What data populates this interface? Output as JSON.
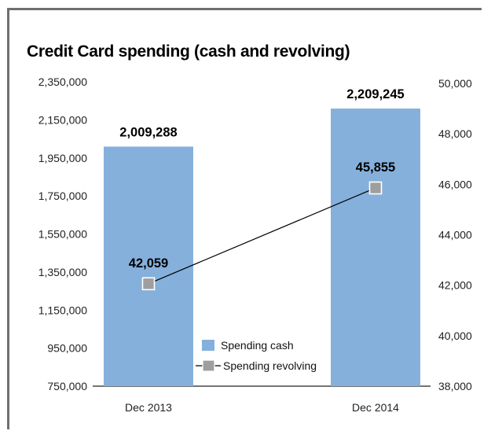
{
  "chart_data": {
    "type": "bar",
    "title": "Credit Card spending (cash and revolving)",
    "categories": [
      "Dec 2013",
      "Dec 2014"
    ],
    "series": [
      {
        "name": "Spending cash",
        "type": "bar",
        "axis": "left",
        "values": [
          2009288,
          2209245
        ],
        "labels": [
          "2,009,288",
          "2,209,245"
        ],
        "color": "#85b0dc"
      },
      {
        "name": "Spending revolving",
        "type": "line",
        "axis": "right",
        "values": [
          42059,
          45855
        ],
        "labels": [
          "42,059",
          "45,855"
        ],
        "color": "#9e9e9e",
        "line_color": "#000000"
      }
    ],
    "y_left": {
      "ylim": [
        750000,
        2350000
      ],
      "ticks": [
        750000,
        950000,
        1150000,
        1350000,
        1550000,
        1750000,
        1950000,
        2150000,
        2350000
      ],
      "tick_labels": [
        "750,000",
        "950,000",
        "1,150,000",
        "1,350,000",
        "1,550,000",
        "1,750,000",
        "1,950,000",
        "2,150,000",
        "2,350,000"
      ]
    },
    "y_right": {
      "ylim": [
        38000,
        50000
      ],
      "ticks": [
        38000,
        40000,
        42000,
        44000,
        46000,
        48000,
        50000
      ],
      "tick_labels": [
        "38,000",
        "40,000",
        "42,000",
        "44,000",
        "46,000",
        "48,000",
        "50,000"
      ]
    },
    "legend": {
      "position": "bottom-center",
      "entries": [
        "Spending cash",
        "Spending revolving"
      ]
    },
    "grid": false
  }
}
